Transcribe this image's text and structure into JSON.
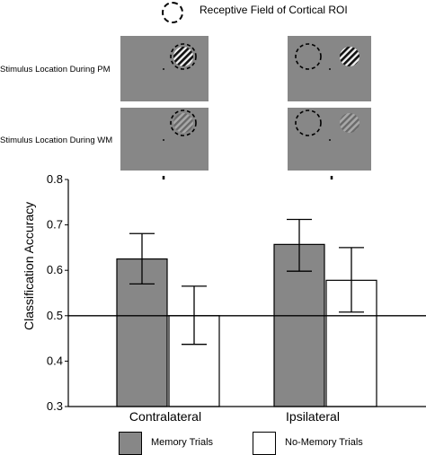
{
  "header": {
    "receptive_field_label": "Receptive Field of Cortical ROI"
  },
  "stimulus_rows": [
    {
      "label": "Stimulus Location During PM"
    },
    {
      "label": "Stimulus Location During WM"
    }
  ],
  "colors": {
    "memory": "#878787",
    "no_memory": "#ffffff",
    "panel_bg": "#878787"
  },
  "chart_data": {
    "type": "bar",
    "title": "",
    "xlabel": "",
    "ylabel": "Classification Accuracy",
    "ylim": [
      0.3,
      0.8
    ],
    "yticks": [
      "0.3",
      "0.4",
      "0.5",
      "0.6",
      "0.7",
      "0.8"
    ],
    "categories": [
      "Contralateral",
      "Ipsilateral"
    ],
    "reference_line": 0.5,
    "series": [
      {
        "name": "Memory Trials",
        "values": [
          0.625,
          0.657
        ],
        "err_low": [
          0.57,
          0.598
        ],
        "err_high": [
          0.681,
          0.712
        ],
        "color": "#878787"
      },
      {
        "name": "No-Memory Trials",
        "values": [
          0.5,
          0.578
        ],
        "err_low": [
          0.437,
          0.508
        ],
        "err_high": [
          0.565,
          0.65
        ],
        "color": "#ffffff"
      }
    ],
    "legend_position": "bottom"
  }
}
